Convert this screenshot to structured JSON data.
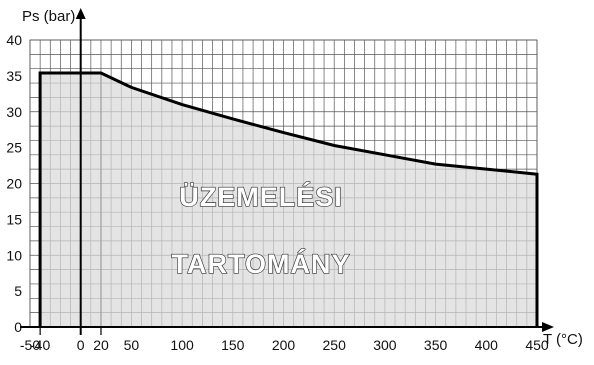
{
  "chart_data": {
    "type": "area",
    "xlabel": "T (°C)",
    "ylabel": "Ps (bar)",
    "xlim": [
      -50,
      450
    ],
    "ylim": [
      0,
      40
    ],
    "grid": true,
    "x_minor_step": 10,
    "y_minor_step": 2,
    "x_ticks": [
      -50,
      -40,
      0,
      20,
      50,
      100,
      150,
      200,
      250,
      300,
      350,
      400,
      450
    ],
    "y_ticks": [
      0,
      5,
      10,
      15,
      20,
      25,
      30,
      35,
      40
    ],
    "x_vertical_lines": [
      -40,
      20
    ],
    "series": [
      {
        "x": [
          -40,
          -40,
          20,
          50,
          100,
          150,
          200,
          250,
          300,
          350,
          400,
          450,
          450
        ],
        "y": [
          0,
          35.4,
          35.4,
          33.4,
          31,
          29,
          27.1,
          25.3,
          24,
          22.7,
          22,
          21.3,
          0
        ]
      }
    ],
    "annotations": [
      "ÜZEMELÉSI",
      "TARTOMÁNY"
    ],
    "colors": {
      "fill": "#d9d9d9",
      "line": "#000000",
      "grid": "#555555"
    }
  }
}
